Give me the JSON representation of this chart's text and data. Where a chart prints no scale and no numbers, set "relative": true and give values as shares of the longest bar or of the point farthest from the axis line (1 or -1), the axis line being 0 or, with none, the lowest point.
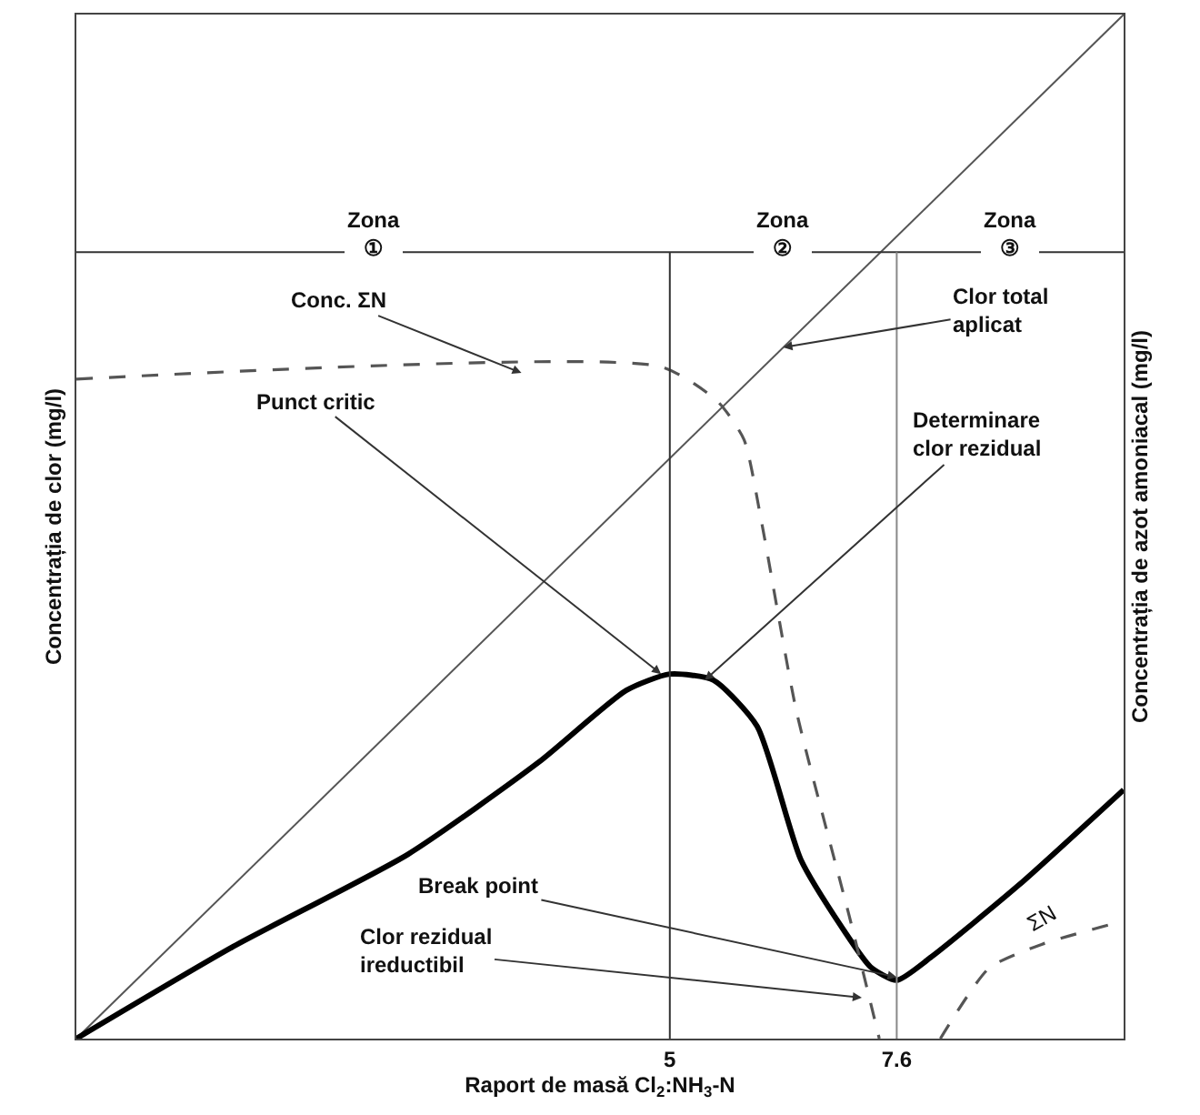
{
  "chart_data": {
    "type": "line",
    "relative": true,
    "xlabel": "Raport de masă Cl$_{2}$:NH$_{3}$-N",
    "ylabel": "Concentrația de clor (mg/l)",
    "y2label": "Concentrația de azot amoniacal (mg/l)",
    "xlim": [
      -1.8,
      10.2
    ],
    "xticks": [
      5,
      7.6
    ],
    "marker": "none",
    "series": [
      {
        "color": "#555555",
        "line_style": "solid",
        "x": [
          -1.8,
          10.2
        ],
        "values": [
          0,
          1
        ]
      },
      {
        "color": "#000000",
        "line_style": "solid",
        "x": [
          -1.8,
          0,
          2,
          3.5,
          4.5,
          5,
          5.5,
          6,
          6.5,
          7,
          7.3,
          7.6,
          8,
          9,
          10.2
        ],
        "values": [
          0,
          0.09,
          0.18,
          0.27,
          0.34,
          0.356,
          0.35,
          0.305,
          0.175,
          0.105,
          0.07,
          0.057,
          0.08,
          0.15,
          0.243
        ]
      },
      {
        "color": "#555555",
        "line_style": "dashed",
        "x": [
          -1.8,
          4.9,
          5.55,
          5.85,
          6.05,
          6.45,
          7.07,
          7.4
        ],
        "values": [
          0.644,
          0.656,
          0.622,
          0.585,
          0.505,
          0.32,
          0.115,
          0
        ]
      },
      {
        "color": "#555555",
        "line_style": "dashed",
        "x": [
          8.1,
          8.66,
          9.26,
          10.2
        ],
        "values": [
          0,
          0.069,
          0.092,
          0.115
        ]
      }
    ],
    "ref_lines": [
      {
        "axis": "y",
        "value": 0.768,
        "color": "#333333"
      },
      {
        "axis": "x",
        "value": 5,
        "color": "#333333"
      },
      {
        "axis": "x",
        "value": 7.6,
        "color": "#888888"
      }
    ],
    "annotations": [
      "Zona\n①",
      "Zona\n②",
      "Zona\n③",
      "ΣN",
      {
        "text": "Conc. ΣN",
        "x": 3.3,
        "y": 0.65
      },
      {
        "text": "Clor total\naplicat",
        "x": 6.3,
        "y": 0.675
      },
      {
        "text": "Punct critic",
        "x": 4.9,
        "y": 0.356
      },
      {
        "text": "Determinare\nclor rezidual",
        "x": 5.4,
        "y": 0.35
      },
      {
        "text": "Break point",
        "x": 7.6,
        "y": 0.06
      },
      {
        "text": "Clor rezidual\nireductibil",
        "x": 7.2,
        "y": 0.04
      }
    ]
  }
}
